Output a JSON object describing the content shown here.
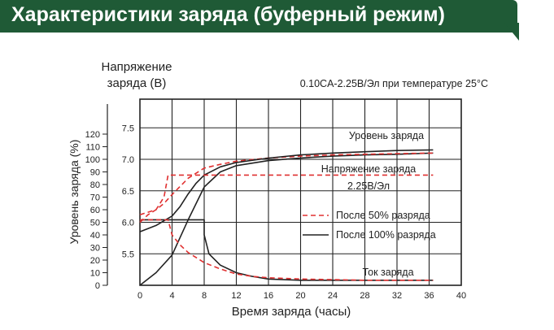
{
  "banner": {
    "title": "Характеристики  заряда (буферный режим)"
  },
  "chart_data": {
    "type": "line",
    "subtitle": "0.10CA-2.25В/Эл при температуре 25°C",
    "voltage_axis_title": [
      "Напряжение",
      "заряда (В)"
    ],
    "level_axis_title": "Уровень заряда (%)",
    "xlabel": "Время заряда (часы)",
    "xlim": [
      0,
      40
    ],
    "x_ticks": [
      0,
      4,
      8,
      12,
      16,
      20,
      24,
      28,
      32,
      36,
      40
    ],
    "voltage_ylim": [
      5.0,
      7.8
    ],
    "voltage_ticks": [
      5.5,
      6.0,
      6.5,
      7.0,
      7.5
    ],
    "level_ylim": [
      0,
      125
    ],
    "level_ticks": [
      0,
      10,
      20,
      30,
      40,
      50,
      60,
      70,
      80,
      90,
      100,
      110,
      120
    ],
    "grid": true,
    "legend": [
      {
        "label": "После 50% разряда",
        "style": "dashed",
        "color": "#e03030"
      },
      {
        "label": "После 100% разряда",
        "style": "solid",
        "color": "#222222"
      }
    ],
    "annotations": {
      "level": "Уровень заряда",
      "voltage": "Напряжение заряда",
      "voltage_value": "2.25В/Эл",
      "current": "Ток заряда"
    },
    "series": [
      {
        "name": "Уровень заряда",
        "condition": "После 100% разряда",
        "axis": "level",
        "x": [
          0,
          2,
          4,
          6,
          8,
          10,
          12,
          16,
          20,
          24,
          28,
          32,
          36.5
        ],
        "values": [
          0,
          10,
          24,
          52,
          78,
          90,
          95,
          99,
          101,
          102.5,
          103.5,
          104,
          105
        ]
      },
      {
        "name": "Уровень заряда",
        "condition": "После 50% разряда",
        "axis": "level",
        "x": [
          0,
          1,
          2,
          3,
          4,
          6,
          8,
          10,
          12,
          16,
          20,
          24,
          28,
          32,
          36.5
        ],
        "values": [
          50,
          56,
          60,
          65,
          72,
          85,
          93,
          96,
          98.5,
          101,
          102.5,
          103.5,
          104,
          104.5,
          105
        ]
      },
      {
        "name": "Напряжение заряда",
        "condition": "После 100% разряда",
        "axis": "voltage",
        "x": [
          0,
          2,
          4,
          5,
          6,
          7,
          8,
          10,
          12,
          16,
          20,
          24,
          28,
          32,
          36.5
        ],
        "values": [
          5.85,
          5.95,
          6.1,
          6.25,
          6.45,
          6.62,
          6.75,
          6.88,
          6.95,
          7.02,
          7.07,
          7.1,
          7.12,
          7.14,
          7.15
        ]
      },
      {
        "name": "Напряжение заряда",
        "condition": "После 50% разряда",
        "axis": "voltage",
        "x": [
          0,
          2,
          3,
          3.5,
          36.5
        ],
        "values": [
          6.12,
          6.2,
          6.4,
          6.75,
          6.75
        ]
      },
      {
        "name": "Ток заряда",
        "condition": "После 100% разряда",
        "axis": "level",
        "x": [
          0,
          8,
          8,
          8.6,
          10,
          12,
          14,
          16,
          20,
          24,
          28,
          32,
          36.5
        ],
        "values": [
          52,
          52,
          40,
          25,
          16,
          10,
          7,
          5,
          4,
          4,
          4,
          4,
          4
        ]
      },
      {
        "name": "Ток заряда",
        "condition": "После 50% разряда",
        "axis": "level",
        "x": [
          0,
          3.5,
          4,
          5,
          6,
          8,
          10,
          12,
          14,
          16,
          20,
          24,
          28,
          32,
          36.5
        ],
        "values": [
          52,
          52,
          40,
          32,
          26,
          18,
          13,
          9,
          7,
          6,
          5,
          4.5,
          4,
          4,
          4
        ]
      }
    ]
  }
}
